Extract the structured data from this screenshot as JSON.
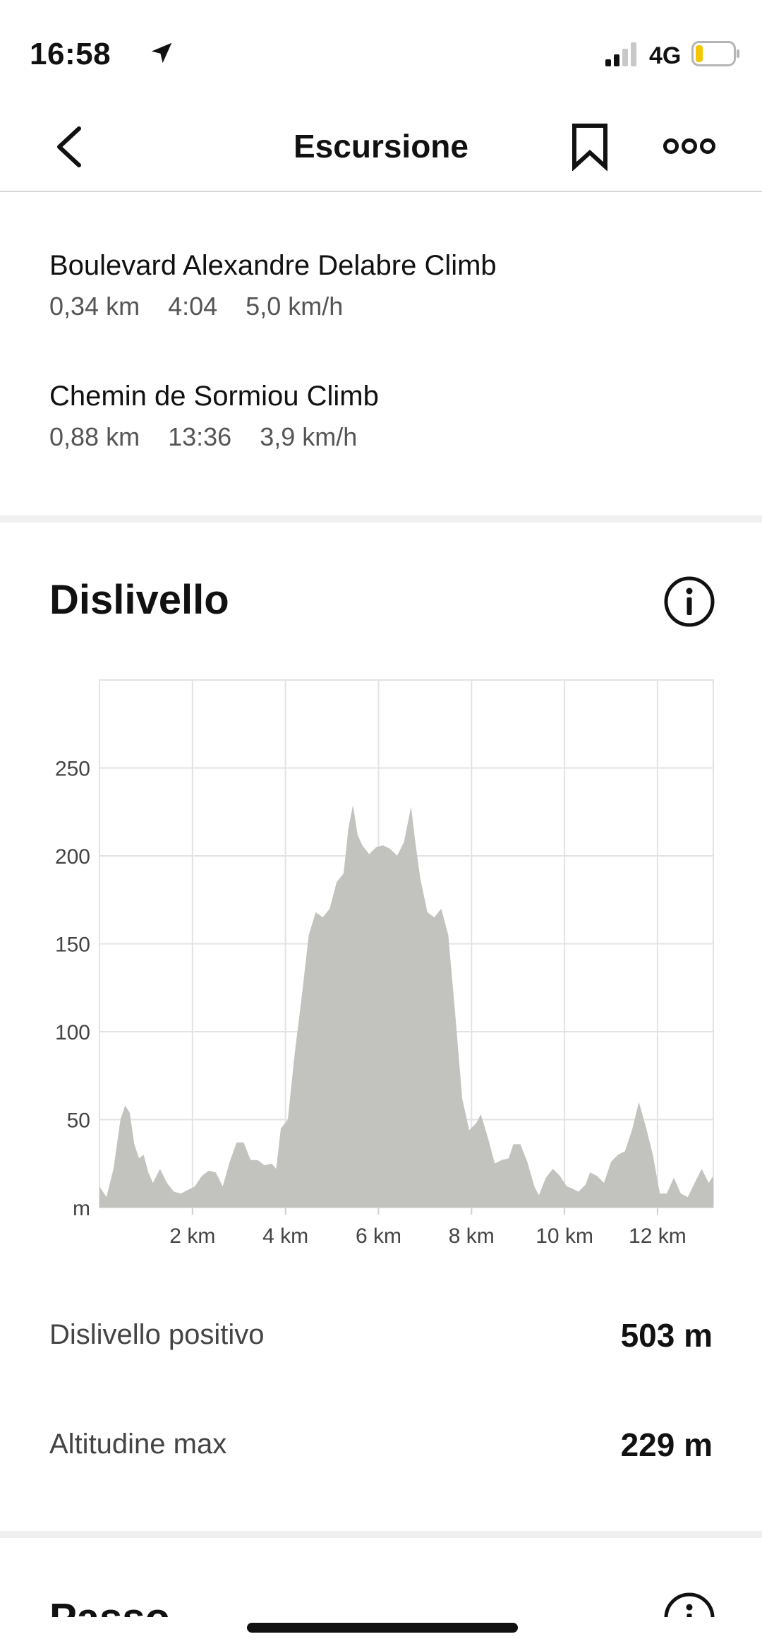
{
  "status_bar": {
    "time": "16:58",
    "network": "4G"
  },
  "nav": {
    "title": "Escursione",
    "back_icon": "chevron-left-icon",
    "bookmark_icon": "bookmark-icon",
    "more_icon": "more-icon"
  },
  "segments": [
    {
      "name": "Boulevard Alexandre Delabre Climb",
      "distance": "0,34 km",
      "time": "4:04",
      "speed": "5,0 km/h"
    },
    {
      "name": "Chemin de Sormiou Climb",
      "distance": "0,88 km",
      "time": "13:36",
      "speed": "3,9 km/h"
    }
  ],
  "elevation": {
    "title": "Dislivello",
    "stats": [
      {
        "label": "Dislivello positivo",
        "value": "503 m"
      },
      {
        "label": "Altitudine max",
        "value": "229 m"
      }
    ]
  },
  "next_section": {
    "title": "Passo"
  },
  "chart_data": {
    "type": "area",
    "title": "",
    "xlabel": "",
    "ylabel": "m",
    "xlim": [
      0,
      13.2
    ],
    "ylim": [
      0,
      300
    ],
    "x_ticks": [
      2,
      4,
      6,
      8,
      10,
      12
    ],
    "x_tick_labels": [
      "2 km",
      "4 km",
      "6 km",
      "8 km",
      "10 km",
      "12 km"
    ],
    "y_ticks": [
      50,
      100,
      150,
      200,
      250
    ],
    "y_tick_labels": [
      "50",
      "100",
      "150",
      "200",
      "250"
    ],
    "y_unit_label": "m",
    "grid": true,
    "fill_color": "#c2c2be",
    "x": [
      0,
      0.15,
      0.3,
      0.45,
      0.55,
      0.65,
      0.75,
      0.85,
      0.95,
      1.05,
      1.15,
      1.3,
      1.45,
      1.6,
      1.75,
      1.9,
      2.05,
      2.2,
      2.35,
      2.5,
      2.65,
      2.8,
      2.95,
      3.1,
      3.25,
      3.4,
      3.55,
      3.7,
      3.8,
      3.9,
      4.05,
      4.2,
      4.35,
      4.5,
      4.65,
      4.8,
      4.95,
      5.1,
      5.25,
      5.35,
      5.45,
      5.55,
      5.65,
      5.8,
      5.95,
      6.1,
      6.25,
      6.4,
      6.55,
      6.7,
      6.8,
      6.9,
      7.05,
      7.2,
      7.35,
      7.5,
      7.65,
      7.8,
      7.95,
      8.1,
      8.2,
      8.35,
      8.5,
      8.65,
      8.8,
      8.9,
      9.05,
      9.2,
      9.35,
      9.45,
      9.6,
      9.75,
      9.9,
      10.05,
      10.15,
      10.3,
      10.45,
      10.55,
      10.7,
      10.85,
      11.0,
      11.15,
      11.3,
      11.45,
      11.6,
      11.75,
      11.9,
      12.05,
      12.2,
      12.35,
      12.5,
      12.65,
      12.8,
      12.95,
      13.1,
      13.2
    ],
    "y": [
      12,
      6,
      22,
      50,
      58,
      54,
      36,
      28,
      30,
      20,
      14,
      22,
      14,
      9,
      8,
      10,
      12,
      18,
      21,
      20,
      12,
      26,
      37,
      37,
      27,
      27,
      24,
      25,
      22,
      45,
      50,
      88,
      120,
      155,
      168,
      165,
      170,
      185,
      190,
      215,
      229,
      212,
      206,
      201,
      205,
      206,
      204,
      200,
      208,
      228,
      206,
      187,
      168,
      165,
      170,
      155,
      110,
      62,
      44,
      48,
      53,
      40,
      25,
      27,
      28,
      36,
      36,
      26,
      12,
      7,
      17,
      22,
      18,
      12,
      11,
      9,
      13,
      20,
      18,
      14,
      26,
      30,
      32,
      44,
      60,
      46,
      30,
      8,
      8,
      17,
      8,
      6,
      14,
      22,
      14,
      18
    ]
  }
}
